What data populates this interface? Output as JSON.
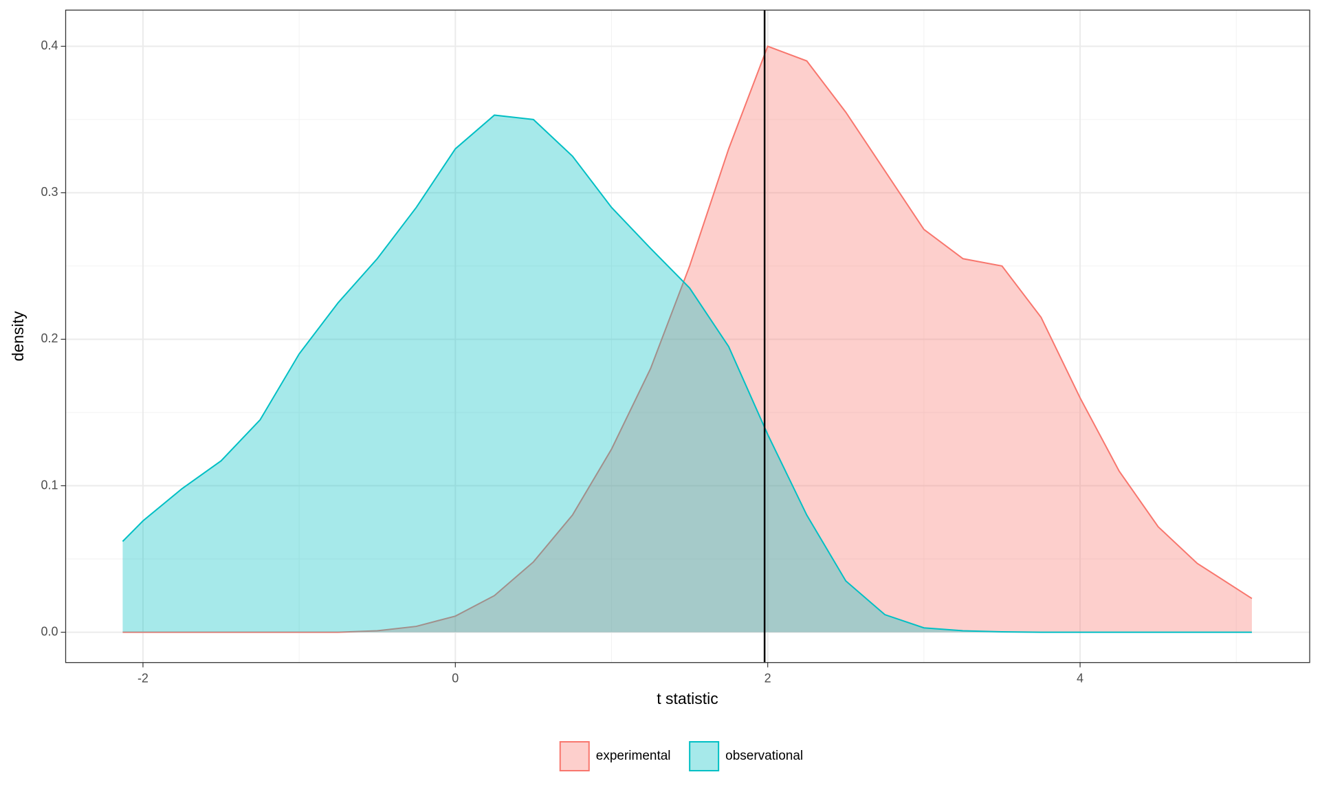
{
  "chart_data": {
    "type": "density",
    "x_label": "t statistic",
    "y_label": "density",
    "x": [
      -2.13,
      -2,
      -1.75,
      -1.5,
      -1.25,
      -1,
      -0.75,
      -0.5,
      -0.25,
      0,
      0.25,
      0.5,
      0.75,
      1,
      1.25,
      1.5,
      1.75,
      2,
      2.25,
      2.5,
      2.75,
      3,
      3.25,
      3.5,
      3.75,
      4,
      4.25,
      4.5,
      4.75,
      5.1
    ],
    "series": [
      {
        "name": "experimental",
        "color": "#F8766D",
        "values": [
          0,
          0,
          0,
          0,
          0,
          0,
          0,
          0.001,
          0.004,
          0.011,
          0.025,
          0.048,
          0.08,
          0.125,
          0.18,
          0.25,
          0.33,
          0.4,
          0.39,
          0.355,
          0.315,
          0.275,
          0.255,
          0.25,
          0.215,
          0.16,
          0.11,
          0.072,
          0.047,
          0.023
        ]
      },
      {
        "name": "observational",
        "color": "#00BFC4",
        "values": [
          0.062,
          0.076,
          0.098,
          0.117,
          0.145,
          0.19,
          0.225,
          0.255,
          0.29,
          0.33,
          0.353,
          0.35,
          0.325,
          0.29,
          0.262,
          0.235,
          0.195,
          0.135,
          0.08,
          0.035,
          0.012,
          0.003,
          0.001,
          0.0003,
          0,
          0,
          0,
          0,
          0,
          0
        ]
      }
    ],
    "vline": 1.98,
    "xlim": [
      -2.495,
      5.47
    ],
    "ylim": [
      -0.0207,
      0.4247
    ],
    "xticks": [
      -2,
      0,
      2,
      4
    ],
    "yticks": [
      {
        "value": 0,
        "label": "0.0"
      },
      {
        "value": 0.1,
        "label": "0.1"
      },
      {
        "value": 0.2,
        "label": "0.2"
      },
      {
        "value": 0.3,
        "label": "0.3"
      },
      {
        "value": 0.4,
        "label": "0.4"
      }
    ],
    "xminor": [
      -1,
      1,
      3,
      5
    ],
    "yminor": [
      0.05,
      0.15,
      0.25,
      0.35
    ],
    "grid": true,
    "fill_opacity": 0.35,
    "legend": "bottom"
  }
}
